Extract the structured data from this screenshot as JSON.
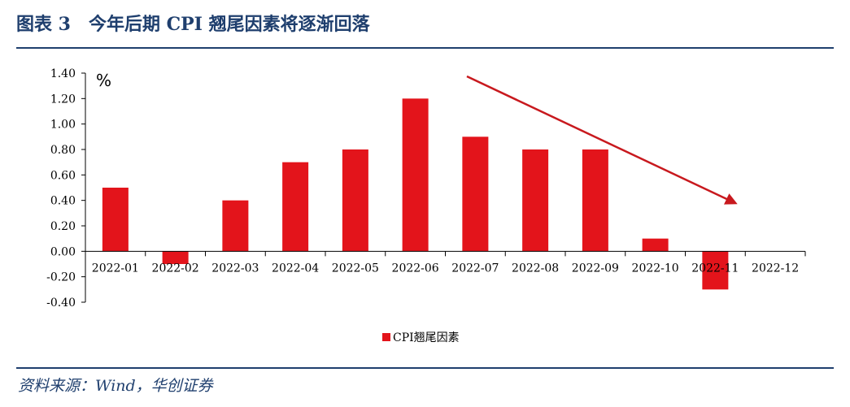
{
  "figure_title": "图表 3　今年后期 CPI 翘尾因素将逐渐回落",
  "source": "资料来源：Wind，华创证券",
  "colors": {
    "bar": "#e3141b",
    "accent": "#1f3f6e",
    "arrow": "#c8191e"
  },
  "chart_data": {
    "type": "bar",
    "title": "",
    "ylabel": "%",
    "xlabel": "",
    "ylim": [
      -0.4,
      1.4
    ],
    "yticks": [
      "1.40",
      "1.20",
      "1.00",
      "0.80",
      "0.60",
      "0.40",
      "0.20",
      "0.00",
      "-0.20",
      "-0.40"
    ],
    "categories": [
      "2022-01",
      "2022-02",
      "2022-03",
      "2022-04",
      "2022-05",
      "2022-06",
      "2022-07",
      "2022-08",
      "2022-09",
      "2022-10",
      "2022-11",
      "2022-12"
    ],
    "series": [
      {
        "name": "CPI翘尾因素",
        "values": [
          0.5,
          -0.1,
          0.4,
          0.7,
          0.8,
          1.2,
          0.9,
          0.8,
          0.8,
          0.1,
          -0.3,
          null
        ]
      }
    ],
    "legend_position": "bottom",
    "annotation": "downward trend arrow from 2022-07 toward 2022-12"
  }
}
